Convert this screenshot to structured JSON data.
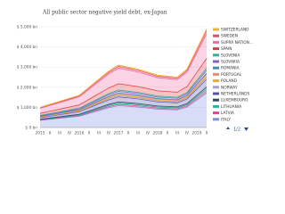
{
  "chart_data": {
    "type": "stacked-area",
    "title": "All public sector negative yield debt, ex-Japan",
    "categories": [
      "2015",
      "II",
      "III",
      "IV",
      "2016",
      "II",
      "III",
      "IV",
      "2017",
      "II",
      "III",
      "IV",
      "2018",
      "II",
      "III",
      "IV",
      "2019",
      "II"
    ],
    "ylim": [
      0,
      5000
    ],
    "yticks": [
      {
        "value": 0,
        "label": "$ 0 bn"
      },
      {
        "value": 1000,
        "label": "$ 1,000 bn"
      },
      {
        "value": 2000,
        "label": "$ 2,000 bn"
      },
      {
        "value": 3000,
        "label": "$ 3,000 bn"
      },
      {
        "value": 4000,
        "label": "$ 4,000 bn"
      },
      {
        "value": 5000,
        "label": "$ 5,000 bn"
      }
    ],
    "grid": true,
    "legend_position": "right",
    "legend_page": "1/2",
    "series": [
      {
        "name": "SWITZERLAND",
        "color": "#f0b429",
        "values": [
          20,
          23,
          26,
          29,
          32,
          40,
          48,
          56,
          62,
          60,
          58,
          55,
          52,
          51,
          50,
          58,
          78,
          98
        ]
      },
      {
        "name": "SWEDEN",
        "color": "#e8476f",
        "values": [
          30,
          35,
          39,
          44,
          48,
          60,
          72,
          84,
          93,
          90,
          87,
          83,
          78,
          77,
          75,
          87,
          117,
          147
        ]
      },
      {
        "name": "SUPRA NATION...",
        "color": "#f06ca8",
        "values": [
          250,
          288,
          325,
          363,
          400,
          500,
          600,
          700,
          775,
          750,
          725,
          688,
          650,
          638,
          625,
          725,
          975,
          1225
        ]
      },
      {
        "name": "SPAIN",
        "color": "#e03c3c",
        "values": [
          100,
          115,
          130,
          145,
          160,
          200,
          240,
          280,
          310,
          300,
          290,
          275,
          260,
          255,
          250,
          290,
          390,
          490
        ]
      },
      {
        "name": "SLOVENIA",
        "color": "#2bb5a0",
        "values": [
          20,
          23,
          26,
          29,
          32,
          40,
          48,
          56,
          62,
          60,
          58,
          55,
          52,
          51,
          50,
          58,
          78,
          98
        ]
      },
      {
        "name": "SLOVAKIA",
        "color": "#8e5bc8",
        "values": [
          30,
          35,
          39,
          44,
          48,
          60,
          72,
          84,
          93,
          90,
          87,
          83,
          78,
          77,
          75,
          87,
          117,
          147
        ]
      },
      {
        "name": "ROMANIA",
        "color": "#3a8fb7",
        "values": [
          10,
          12,
          13,
          15,
          16,
          20,
          24,
          28,
          31,
          30,
          29,
          28,
          26,
          26,
          25,
          29,
          39,
          49
        ]
      },
      {
        "name": "PORTUGAL",
        "color": "#f08a6c",
        "values": [
          20,
          23,
          26,
          29,
          32,
          40,
          48,
          56,
          62,
          60,
          58,
          55,
          52,
          51,
          50,
          58,
          78,
          98
        ]
      },
      {
        "name": "POLAND",
        "color": "#f5a623",
        "values": [
          10,
          12,
          13,
          15,
          16,
          20,
          24,
          28,
          31,
          30,
          29,
          28,
          26,
          26,
          25,
          29,
          39,
          49
        ]
      },
      {
        "name": "NORWAY",
        "color": "#a0a0c8",
        "values": [
          20,
          23,
          26,
          29,
          32,
          40,
          48,
          56,
          62,
          60,
          58,
          55,
          52,
          51,
          50,
          58,
          78,
          98
        ]
      },
      {
        "name": "NETHERLANDS",
        "color": "#5a4fa8",
        "values": [
          80,
          92,
          104,
          116,
          128,
          160,
          192,
          224,
          248,
          240,
          232,
          220,
          208,
          204,
          200,
          232,
          312,
          392
        ]
      },
      {
        "name": "LUXEMBOURG",
        "color": "#34495e",
        "values": [
          20,
          23,
          26,
          29,
          32,
          40,
          48,
          56,
          62,
          60,
          58,
          55,
          52,
          51,
          50,
          58,
          78,
          98
        ]
      },
      {
        "name": "LITHUANIA",
        "color": "#1abc9c",
        "values": [
          20,
          23,
          26,
          29,
          32,
          40,
          48,
          56,
          62,
          60,
          58,
          55,
          52,
          51,
          50,
          58,
          78,
          98
        ]
      },
      {
        "name": "LATVIA",
        "color": "#e84393",
        "values": [
          20,
          23,
          26,
          29,
          32,
          40,
          48,
          56,
          62,
          60,
          58,
          55,
          52,
          51,
          50,
          58,
          78,
          98
        ]
      },
      {
        "name": "ITALY",
        "color": "#7b8fe0",
        "values": [
          350,
          403,
          455,
          508,
          560,
          700,
          840,
          980,
          1085,
          1050,
          1015,
          963,
          910,
          893,
          875,
          1015,
          1365,
          1715
        ]
      }
    ]
  }
}
